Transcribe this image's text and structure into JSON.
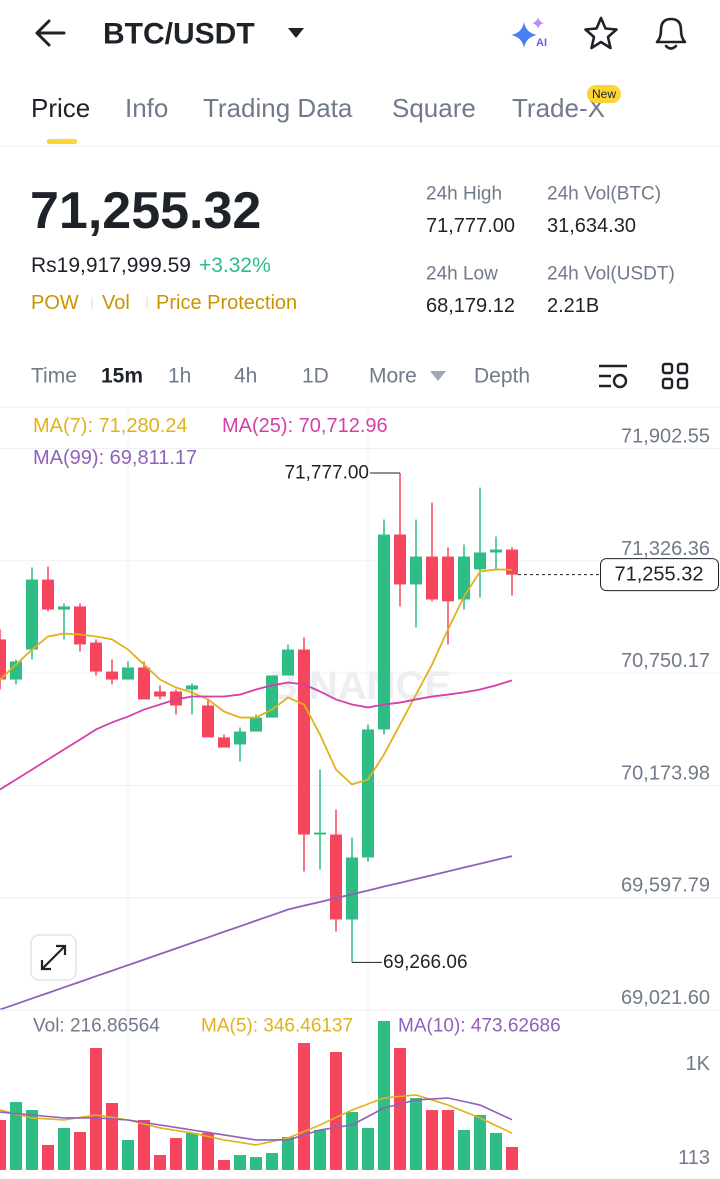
{
  "header": {
    "title": "BTC/USDT"
  },
  "tabs": {
    "items": [
      "Price",
      "Info",
      "Trading Data",
      "Square",
      "Trade-X"
    ],
    "badge": "New"
  },
  "ticker": {
    "price": "71,255.32",
    "fiat": "Rs19,917,999.59",
    "change": "+3.32%",
    "tags": [
      "POW",
      "Vol",
      "Price Protection"
    ]
  },
  "stats": [
    {
      "label": "24h High",
      "value": "71,777.00"
    },
    {
      "label": "24h Vol(BTC)",
      "value": "31,634.30"
    },
    {
      "label": "24h Low",
      "value": "68,179.12"
    },
    {
      "label": "24h Vol(USDT)",
      "value": "2.21B"
    }
  ],
  "intervals": {
    "items": [
      "Time",
      "15m",
      "1h",
      "4h",
      "1D",
      "More",
      "Depth"
    ]
  },
  "chart": {
    "type": "candlestick",
    "up_color": "#2ebd85",
    "down_color": "#f6465d",
    "candles": [
      [
        70923,
        70974,
        70666,
        70717
      ],
      [
        70717,
        70820,
        70692,
        70810
      ],
      [
        70871,
        71292,
        70820,
        71230
      ],
      [
        71230,
        71297,
        71066,
        71076
      ],
      [
        71076,
        71107,
        70923,
        71092
      ],
      [
        71092,
        71107,
        70861,
        70897
      ],
      [
        70907,
        70923,
        70738,
        70758
      ],
      [
        70758,
        70820,
        70692,
        70717
      ],
      [
        70717,
        70810,
        70717,
        70779
      ],
      [
        70779,
        70810,
        70615,
        70615
      ],
      [
        70656,
        70687,
        70615,
        70630
      ],
      [
        70656,
        70666,
        70538,
        70584
      ],
      [
        70666,
        70697,
        70538,
        70687
      ],
      [
        70584,
        70615,
        70420,
        70420
      ],
      [
        70420,
        70435,
        70368,
        70368
      ],
      [
        70384,
        70471,
        70297,
        70450
      ],
      [
        70450,
        70538,
        70450,
        70522
      ],
      [
        70522,
        70738,
        70522,
        70738
      ],
      [
        70738,
        70897,
        70738,
        70871
      ],
      [
        70871,
        70933,
        69732,
        69922
      ],
      [
        69922,
        70255,
        69742,
        69932
      ],
      [
        69922,
        70050,
        69424,
        69486
      ],
      [
        69486,
        69907,
        69266.06,
        69804
      ],
      [
        69804,
        70486,
        69783,
        70461
      ],
      [
        70461,
        71538,
        70435,
        71461
      ],
      [
        71461,
        71777,
        71092,
        71205
      ],
      [
        71205,
        71538,
        70984,
        71348
      ],
      [
        71348,
        71625,
        71118,
        71128
      ],
      [
        71348,
        71395,
        70897,
        71118
      ],
      [
        71128,
        71410,
        71076,
        71348
      ],
      [
        71282,
        71702,
        71138,
        71369
      ],
      [
        71369,
        71451,
        71282,
        71384
      ],
      [
        71384,
        71395,
        71148,
        71255.32
      ]
    ],
    "ylim": [
      69021.6,
      72100
    ],
    "yticks": [
      {
        "value": 71902.55,
        "label": "71,902.55"
      },
      {
        "value": 71326.36,
        "label": "71,326.36"
      },
      {
        "value": 70750.17,
        "label": "70,750.17"
      },
      {
        "value": 70173.98,
        "label": "70,173.98"
      },
      {
        "value": 69597.79,
        "label": "69,597.79"
      },
      {
        "value": 69021.6,
        "label": "69,021.60"
      }
    ],
    "grid": true,
    "ma": [
      {
        "legend": "MA(7): 71,280.24",
        "color": "#e0b21c",
        "values": [
          70717,
          70794,
          70871,
          70938,
          70953,
          70948,
          70938,
          70923,
          70871,
          70794,
          70717,
          70676,
          70651,
          70615,
          70553,
          70522,
          70522,
          70563,
          70625,
          70589,
          70435,
          70255,
          70179,
          70204,
          70332,
          70486,
          70640,
          70794,
          70974,
          71143,
          71271,
          71282,
          71280.24
        ]
      },
      {
        "legend": "MA(25): 70,712.96",
        "color": "#d63fa7",
        "values": [
          70153,
          70204,
          70255,
          70307,
          70358,
          70409,
          70461,
          70497,
          70527,
          70563,
          70589,
          70615,
          70630,
          70630,
          70630,
          70640,
          70666,
          70687,
          70702,
          70692,
          70656,
          70615,
          70589,
          70574,
          70589,
          70599,
          70615,
          70630,
          70640,
          70651,
          70666,
          70687,
          70712.96
        ]
      },
      {
        "legend": "MA(99): 69,811.17",
        "color": "#8e62b8",
        "values": [
          69024,
          69052,
          69081,
          69109,
          69138,
          69166,
          69195,
          69223,
          69252,
          69280,
          69309,
          69337,
          69366,
          69394,
          69423,
          69451,
          69480,
          69508,
          69537,
          69557,
          69576,
          69596,
          69615,
          69635,
          69655,
          69674,
          69694,
          69713,
          69733,
          69753,
          69772,
          69792,
          69811.17
        ]
      }
    ],
    "high_label": "71,777.00",
    "low_label": "69,266.06",
    "price_label": "71,255.32",
    "watermark": "BINANCE"
  },
  "volume": {
    "type": "bar",
    "legend": "Vol: 216.86564",
    "values": [
      471,
      641,
      565,
      236,
      396,
      358,
      1149,
      631,
      283,
      471,
      141,
      301,
      349,
      349,
      94,
      141,
      122,
      160,
      311,
      1196,
      377,
      1112,
      546,
      396,
      1404,
      1149,
      678,
      565,
      565,
      377,
      518,
      349,
      216.86564
    ],
    "ylim": [
      0,
      1413
    ],
    "yticks": [
      113,
      {
        "value": 1000,
        "label": "1K"
      }
    ],
    "ma": [
      {
        "legend": "MA(5): 346.46137",
        "color": "#e0b21c",
        "values": [
          565,
          528,
          490,
          481,
          471,
          495,
          518,
          495,
          471,
          434,
          396,
          373,
          349,
          316,
          283,
          260,
          236,
          269,
          301,
          363,
          424,
          495,
          565,
          622,
          678,
          693,
          707,
          660,
          612,
          551,
          490,
          418,
          346.46137
        ]
      },
      {
        "legend": "MA(10): 473.62686",
        "color": "#8e62b8",
        "values": [
          546,
          532,
          518,
          504,
          490,
          490,
          490,
          481,
          471,
          448,
          424,
          401,
          377,
          354,
          330,
          307,
          283,
          283,
          283,
          330,
          377,
          401,
          424,
          504,
          584,
          622,
          659,
          669,
          678,
          645,
          612,
          543,
          473.62686
        ]
      }
    ]
  }
}
